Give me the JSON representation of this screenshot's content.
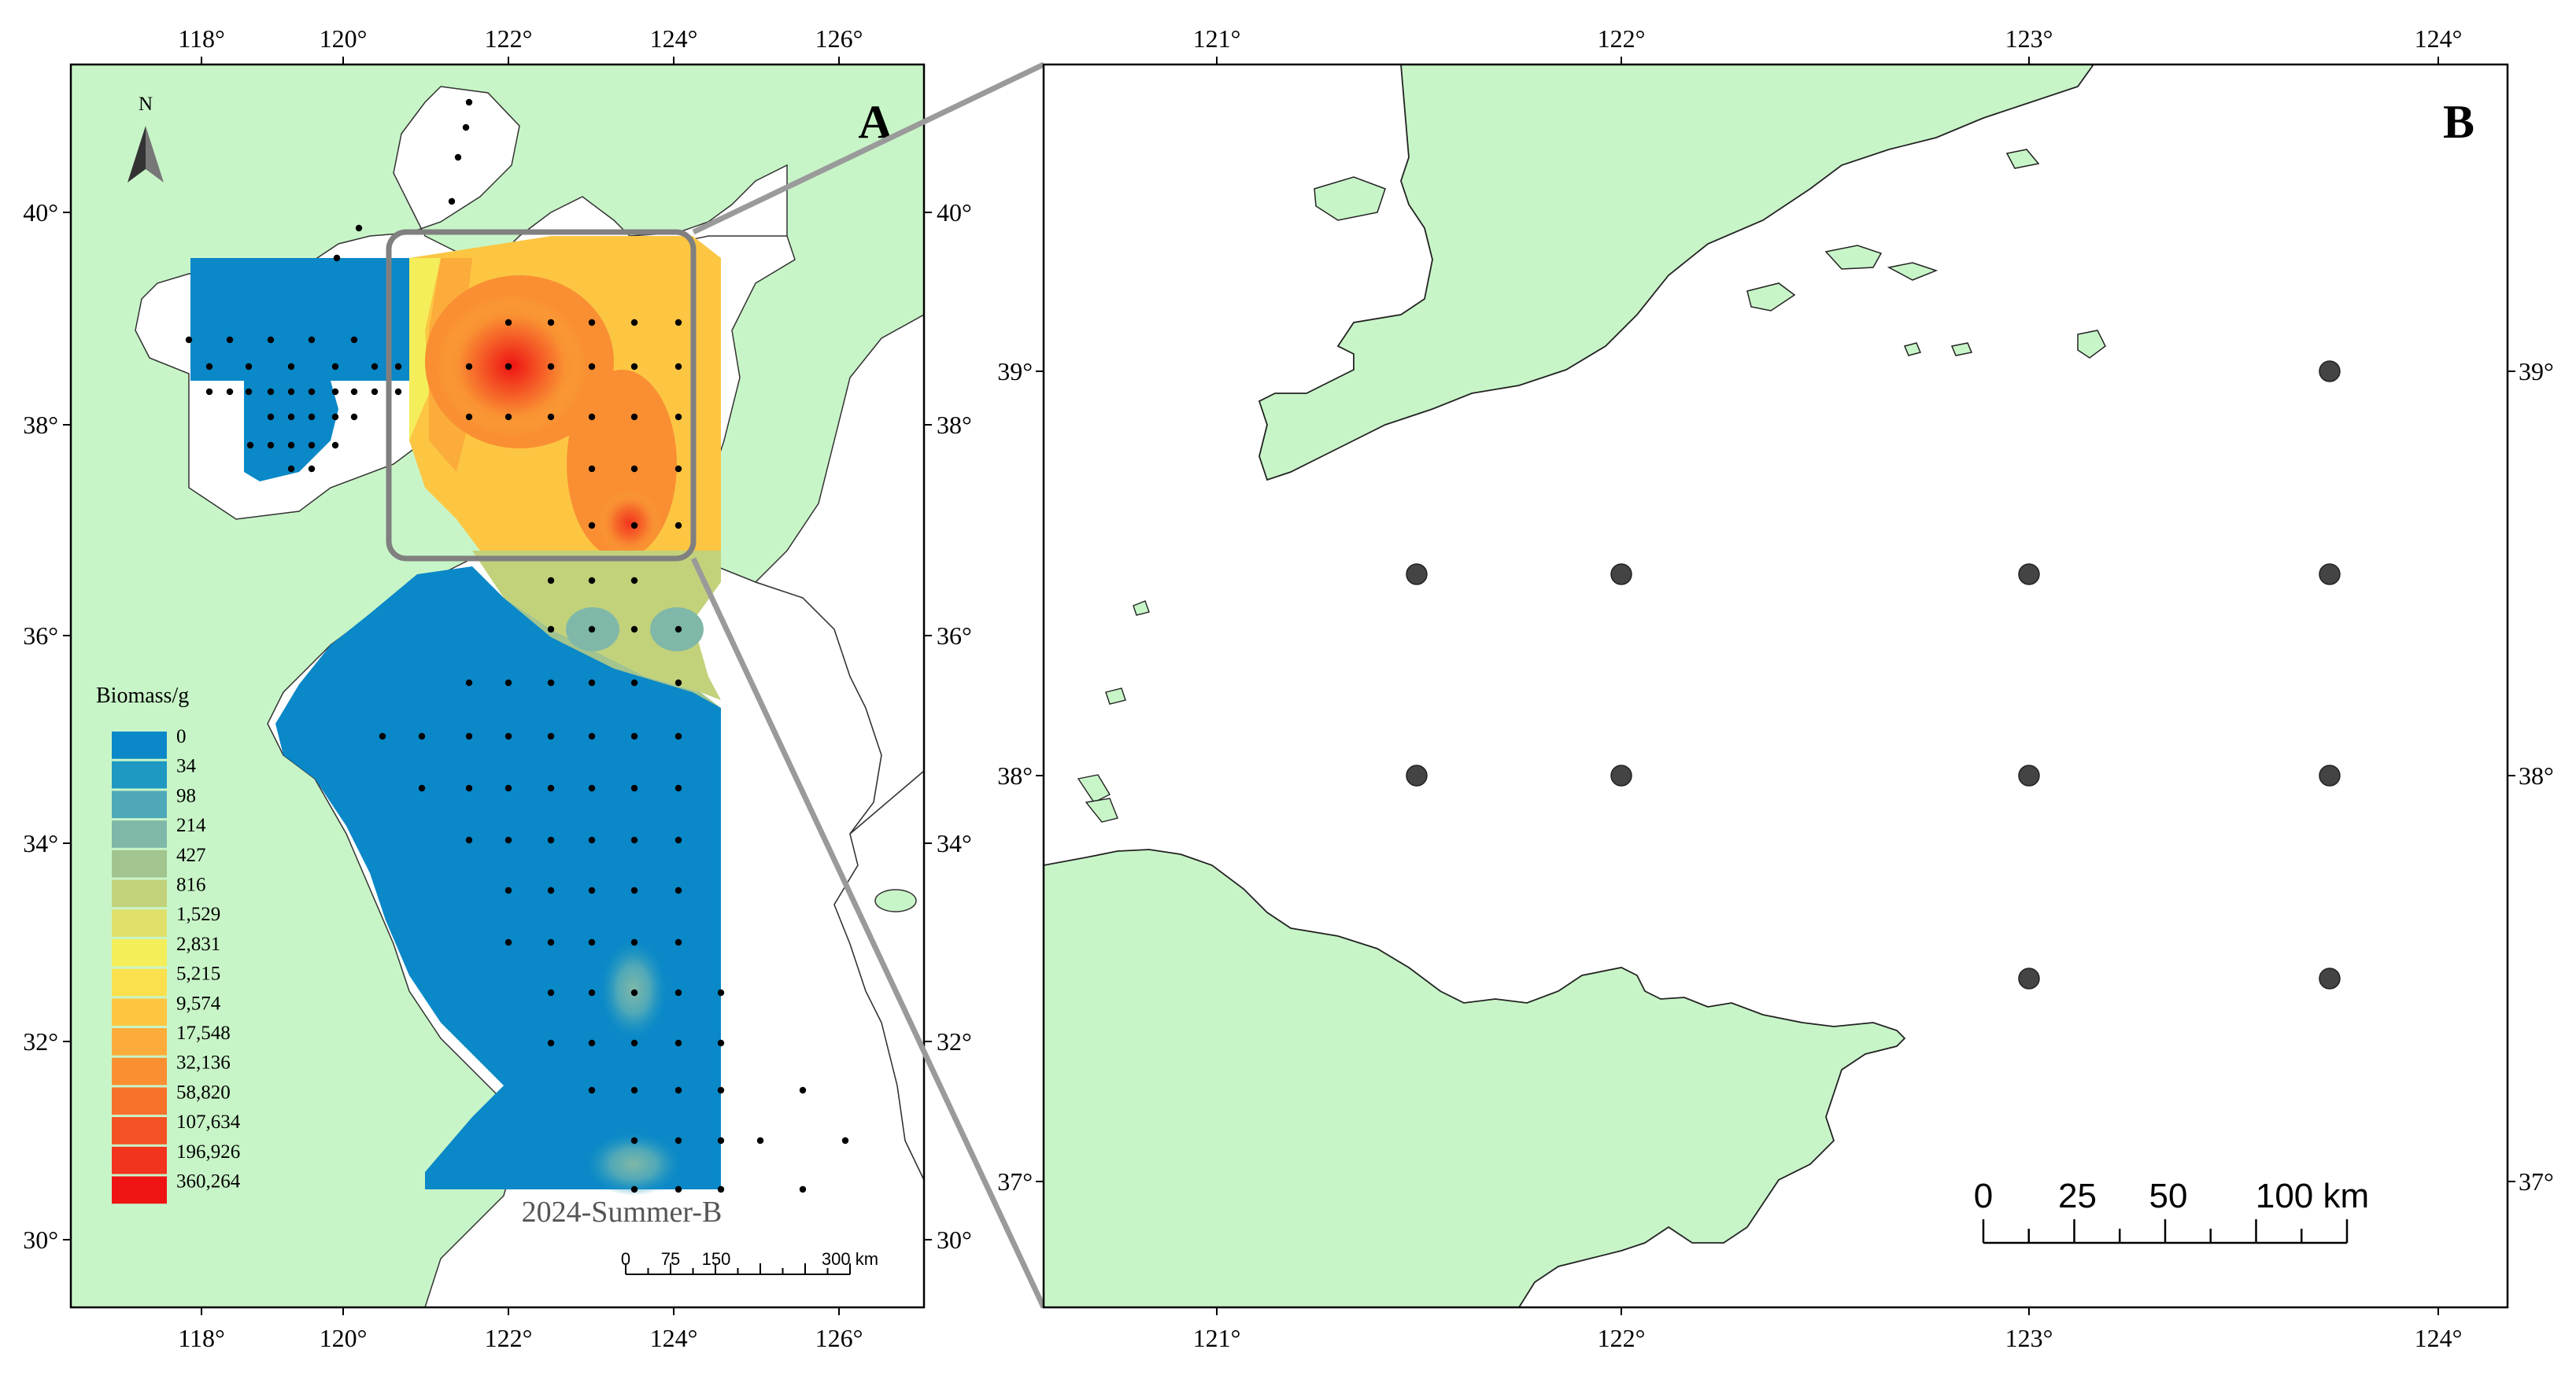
{
  "panel_a": {
    "letter": "A",
    "north_label": "N",
    "season_label": "2024-Summer-B",
    "lon_ticks": [
      "118°",
      "120°",
      "122°",
      "124°",
      "126°"
    ],
    "lat_ticks": [
      "30°",
      "32°",
      "34°",
      "36°",
      "38°",
      "40°"
    ],
    "legend": {
      "title": "Biomass/g",
      "classes": [
        {
          "label": "0",
          "color": "#0a88c8"
        },
        {
          "label": "34",
          "color": "#1f98c2"
        },
        {
          "label": "98",
          "color": "#4fa8b8"
        },
        {
          "label": "214",
          "color": "#7fb8a8"
        },
        {
          "label": "427",
          "color": "#a2c48e"
        },
        {
          "label": "816",
          "color": "#c2d27a"
        },
        {
          "label": "1,529",
          "color": "#dfe06a"
        },
        {
          "label": "2,831",
          "color": "#f4ee5a"
        },
        {
          "label": "5,215",
          "color": "#fbe04e"
        },
        {
          "label": "9,574",
          "color": "#fcc643"
        },
        {
          "label": "17,548",
          "color": "#fbac3a"
        },
        {
          "label": "32,136",
          "color": "#f98f32"
        },
        {
          "label": "58,820",
          "color": "#f7712b"
        },
        {
          "label": "107,634",
          "color": "#f45224"
        },
        {
          "label": "196,926",
          "color": "#f2331d"
        },
        {
          "label": "360,264",
          "color": "#ee1414"
        }
      ]
    },
    "scale_bar": {
      "labels": [
        "0",
        "75",
        "150",
        "300 km"
      ]
    }
  },
  "panel_b": {
    "letter": "B",
    "lon_ticks": [
      "121°",
      "122°",
      "123°",
      "124°"
    ],
    "lat_ticks": [
      "37°",
      "38°",
      "39°"
    ],
    "scale_bar": {
      "labels": [
        "0",
        "25",
        "50",
        "100 km"
      ]
    }
  },
  "colors": {
    "land": "#c8f5c8",
    "sea": "#ffffff",
    "zoom_box": "#808080",
    "station_dot": "#000000",
    "station_dot_b": "#444444"
  }
}
